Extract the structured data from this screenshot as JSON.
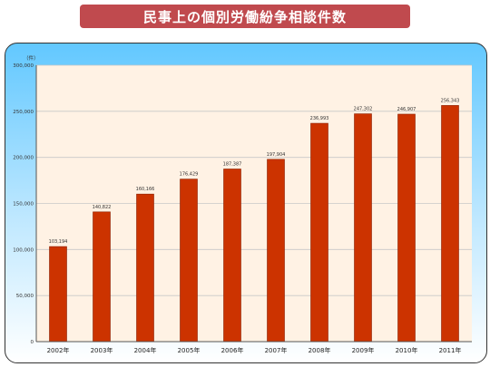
{
  "page": {
    "title": "民事上の個別労働紛争相談件数"
  },
  "chart_data": {
    "type": "bar",
    "unit_label": "（件）",
    "categories": [
      "2002年",
      "2003年",
      "2004年",
      "2005年",
      "2006年",
      "2007年",
      "2008年",
      "2009年",
      "2010年",
      "2011年"
    ],
    "values": [
      103194,
      140822,
      160166,
      176429,
      187387,
      197904,
      236993,
      247302,
      246907,
      256343
    ],
    "data_labels": [
      "103,194",
      "140,822",
      "160,166",
      "176,429",
      "187,387",
      "197,904",
      "236,993",
      "247,302",
      "246,907",
      "256,343"
    ],
    "y_ticks": [
      0,
      50000,
      100000,
      150000,
      200000,
      250000,
      300000
    ],
    "y_tick_labels": [
      "0",
      "50,000",
      "100,000",
      "150,000",
      "200,000",
      "250,000",
      "300,000"
    ],
    "ylim": [
      0,
      300000
    ],
    "grid": true,
    "colors": {
      "bar": "#cc3300",
      "bar_edge": "#8a1f00",
      "plot_bg": "#fff2e4",
      "grid": "#c8c8c8"
    }
  }
}
